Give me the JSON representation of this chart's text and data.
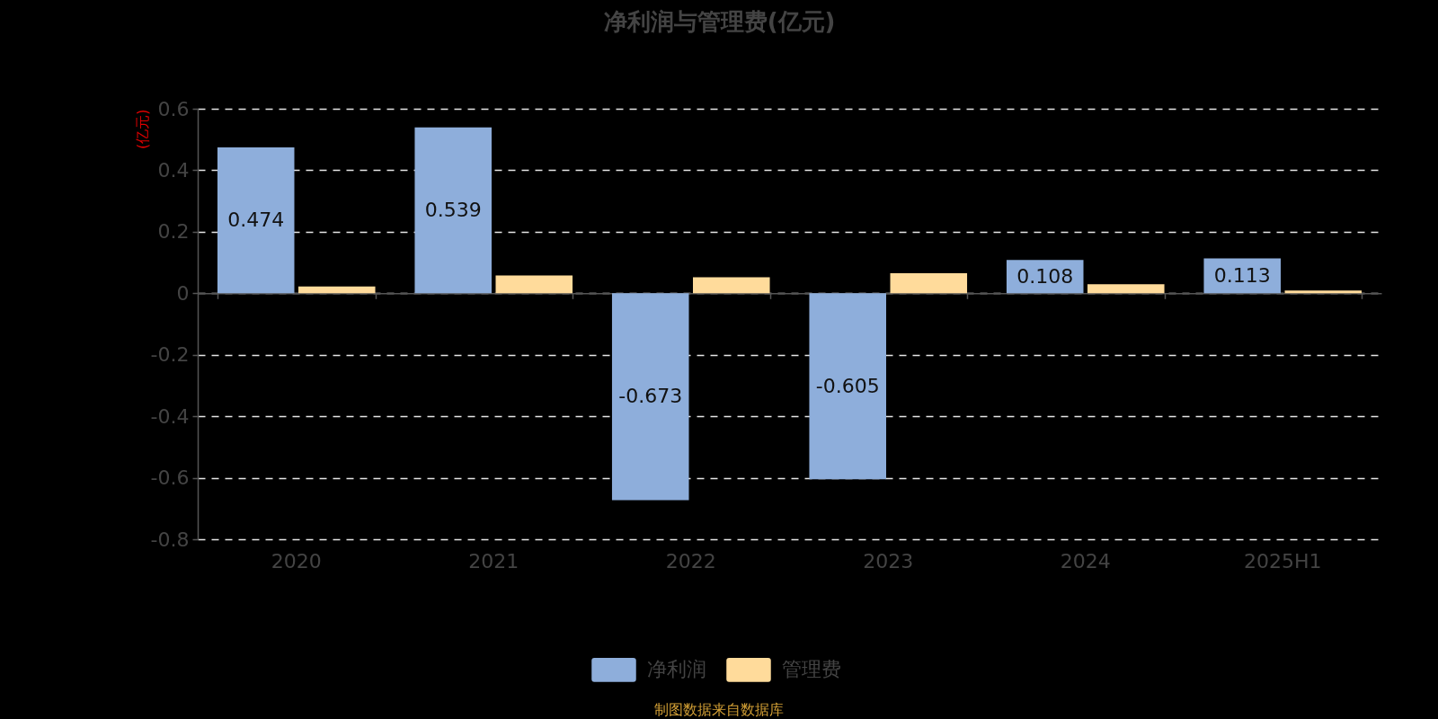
{
  "chart_data": {
    "type": "bar",
    "title": "净利润与管理费(亿元)",
    "ylabel": "(亿元)",
    "categories": [
      "2020",
      "2021",
      "2022",
      "2023",
      "2024",
      "2025H1"
    ],
    "series": [
      {
        "name": "净利润",
        "color": "#8eaedb",
        "values": [
          0.474,
          0.539,
          -0.673,
          -0.605,
          0.108,
          0.113
        ],
        "value_labels": [
          "0.474",
          "0.539",
          "-0.673",
          "-0.605",
          "0.108",
          "0.113"
        ]
      },
      {
        "name": "管理费",
        "color": "#ffdb9b",
        "values": [
          0.022,
          0.058,
          0.052,
          0.065,
          0.029,
          0.009
        ]
      }
    ],
    "ylim": [
      -0.8,
      0.6
    ],
    "yticks": [
      -0.8,
      -0.6,
      -0.4,
      -0.2,
      0,
      0.2,
      0.4,
      0.6
    ],
    "grid": "y",
    "legend": "bottom",
    "annotations": [
      "制图数据来自数据库"
    ]
  }
}
